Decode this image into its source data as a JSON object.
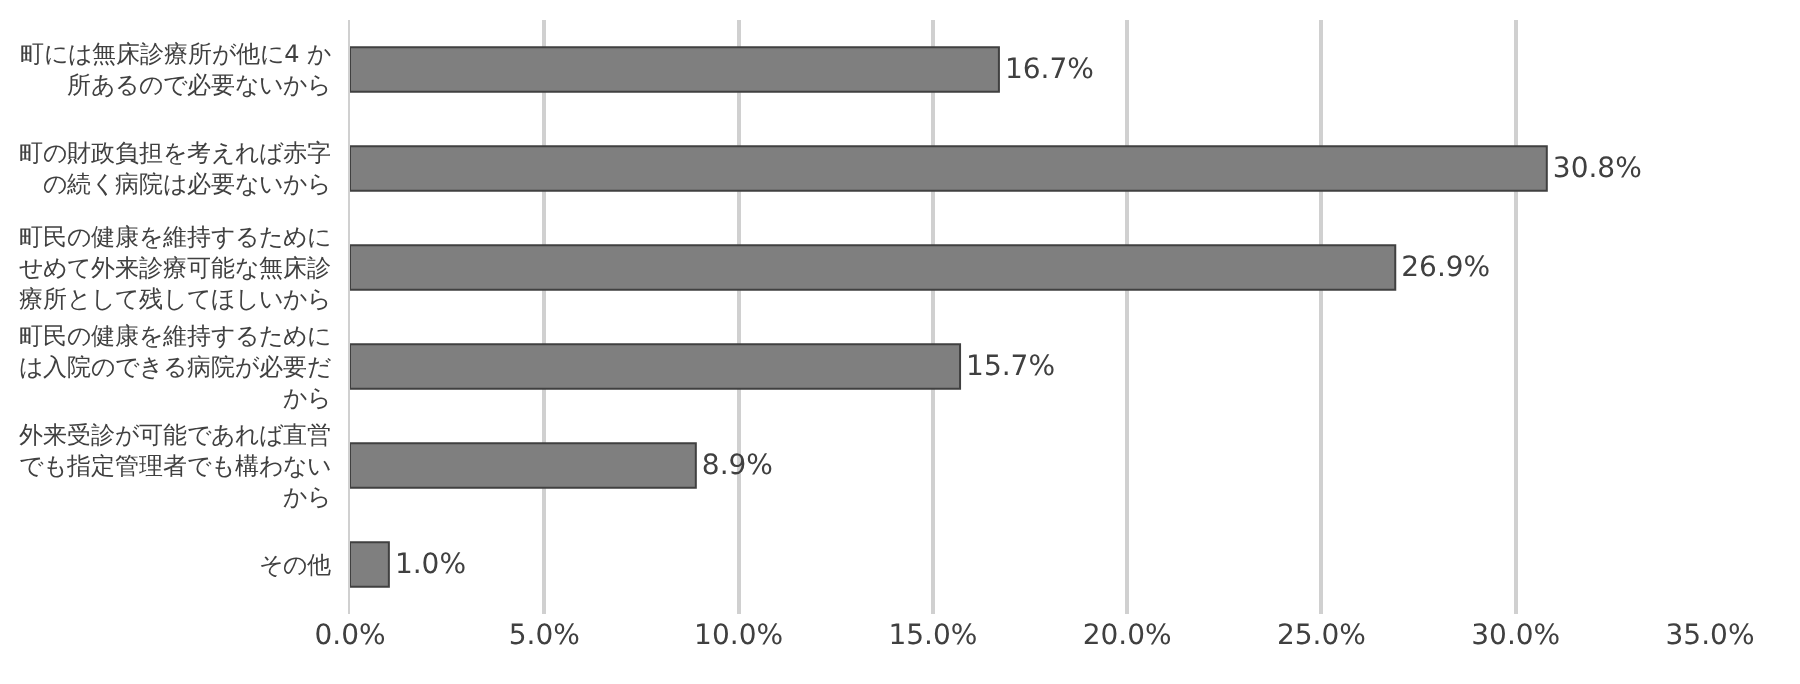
{
  "chart_data": {
    "type": "bar",
    "orientation": "horizontal",
    "categories": [
      "町には無床診療所が他に4 か所あるので必要ないから",
      "町の財政負担を考えれば赤字の続く病院は必要ないから",
      "町民の健康を維持するためにせめて外来診療可能な無床診療所として残してほしいから",
      "町民の健康を維持するためには入院のできる病院が必要だから",
      "外来受診が可能であれば直営でも指定管理者でも構わないから",
      "その他"
    ],
    "values": [
      16.7,
      30.8,
      26.9,
      15.7,
      8.9,
      1.0
    ],
    "value_labels": [
      "16.7%",
      "30.8%",
      "26.9%",
      "15.7%",
      "8.9%",
      "1.0%"
    ],
    "color": "#7f7f7f",
    "xlim": [
      0,
      35
    ],
    "xticks": [
      {
        "value": 0,
        "label": "0.0%"
      },
      {
        "value": 5,
        "label": "5.0%"
      },
      {
        "value": 10,
        "label": "10.0%"
      },
      {
        "value": 15,
        "label": "15.0%"
      },
      {
        "value": 20,
        "label": "20.0%"
      },
      {
        "value": 25,
        "label": "25.0%"
      },
      {
        "value": 30,
        "label": "30.0%"
      },
      {
        "value": 35,
        "label": "35.0%"
      }
    ],
    "grid": "x"
  }
}
